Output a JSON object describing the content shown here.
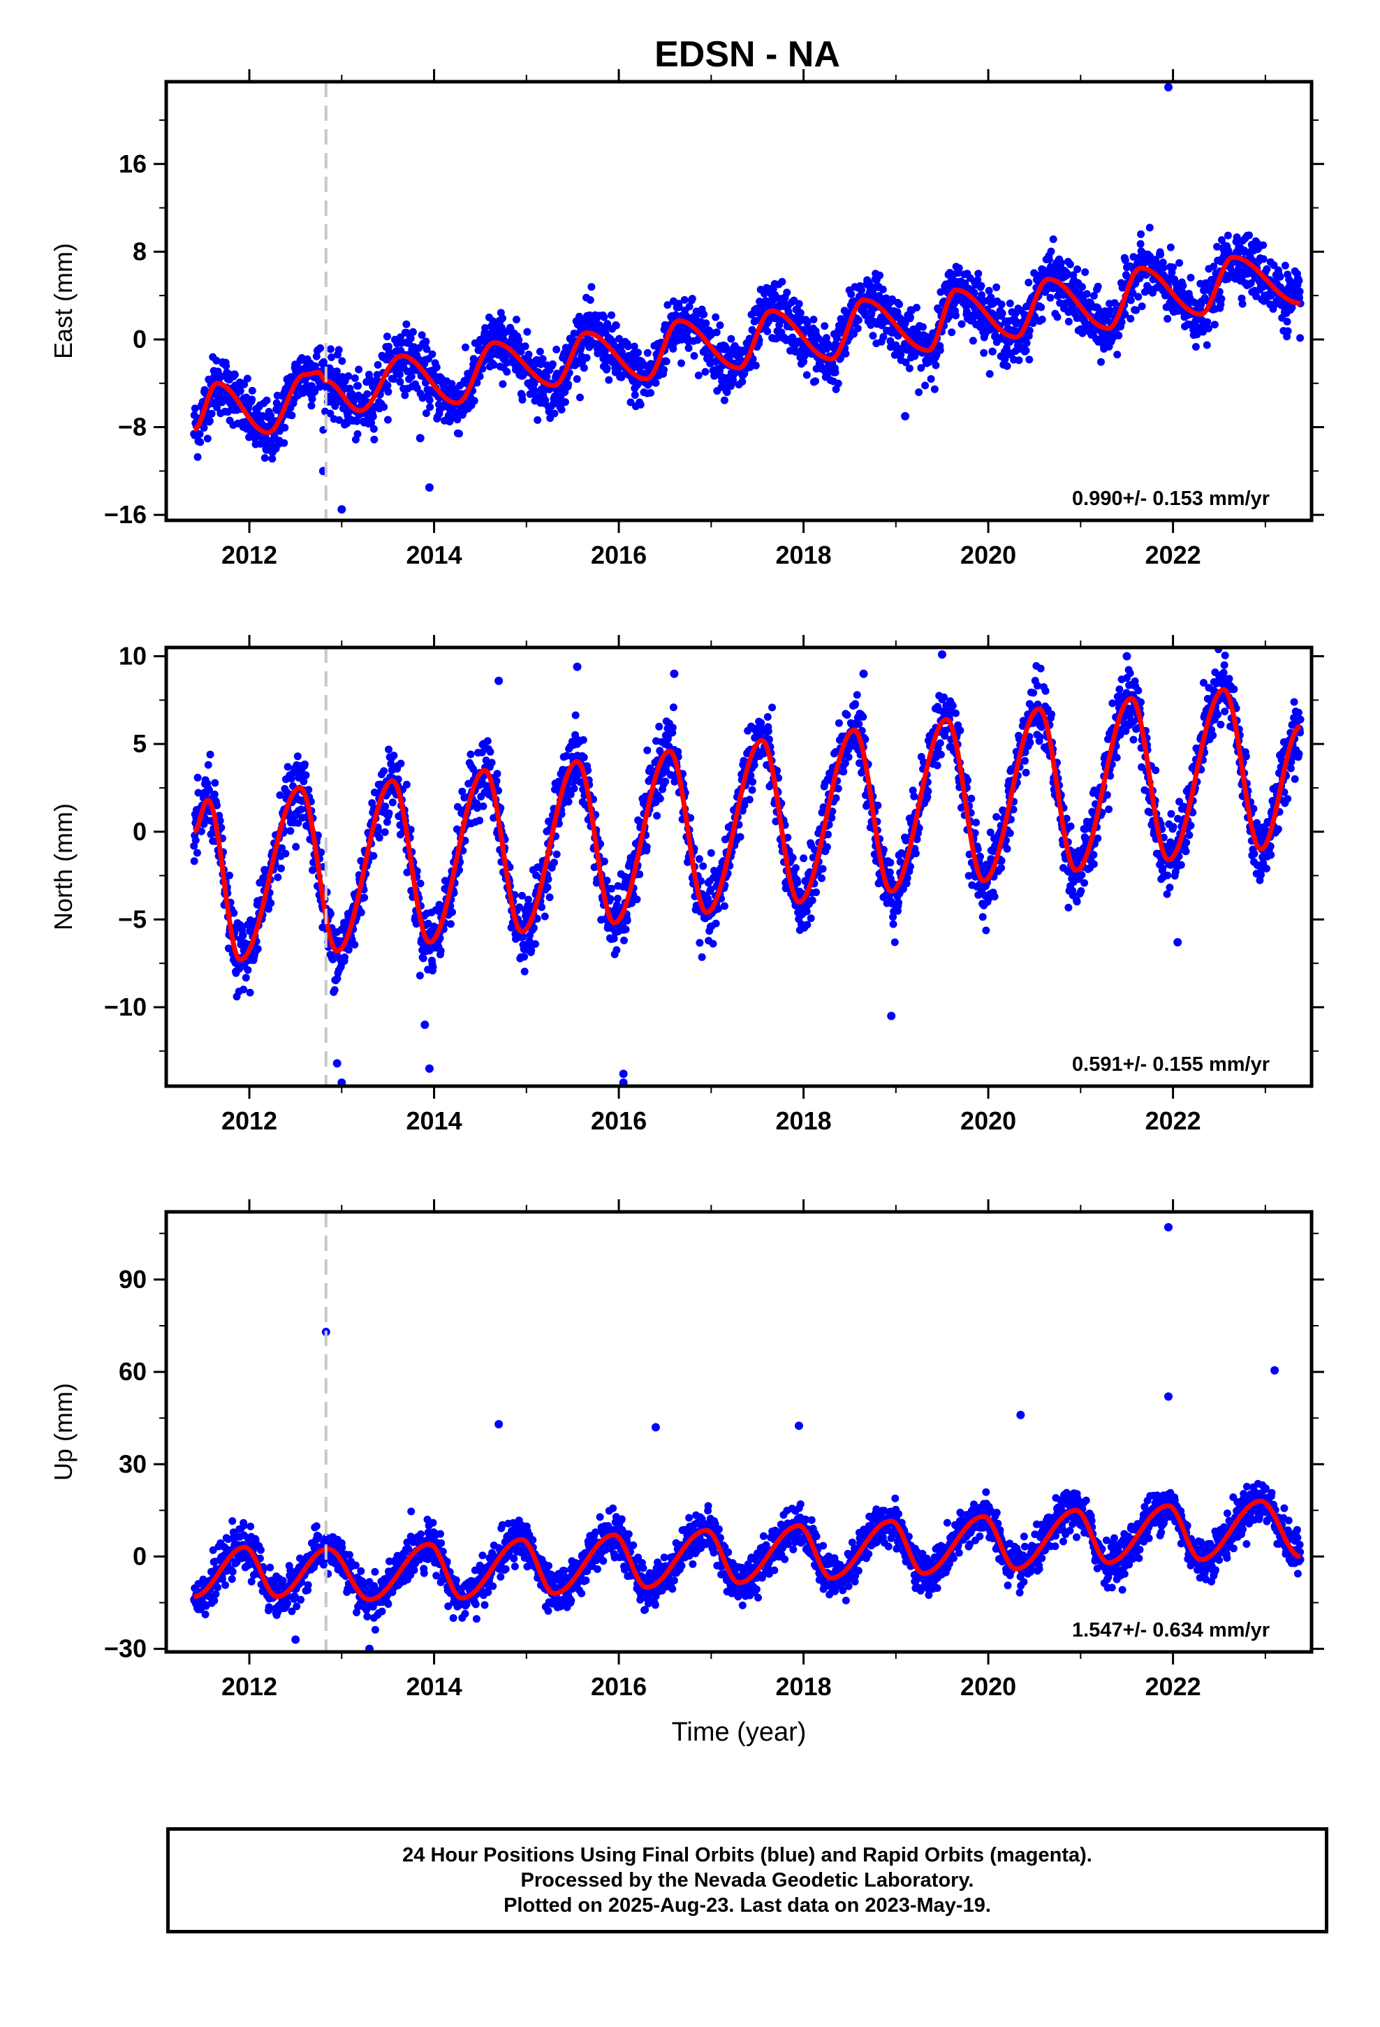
{
  "title": "EDSN - NA",
  "footer": {
    "line1": "24 Hour Positions Using Final Orbits (blue) and Rapid Orbits (magenta).",
    "line2": "Processed by the Nevada Geodetic Laboratory.",
    "line3": "Plotted on 2025-Aug-23. Last data on 2023-May-19."
  },
  "colors": {
    "points": "#0000ff",
    "model": "#ff0000",
    "event_line": "#c8c8c8",
    "frame": "#000000"
  },
  "chart_data": [
    {
      "type": "scatter",
      "name": "east",
      "ylabel": "East (mm)",
      "xlim": [
        2011.1,
        2023.5
      ],
      "ylim": [
        -16.5,
        23.5
      ],
      "yticks": [
        -16,
        -8,
        0,
        8,
        16
      ],
      "ytick_labels": [
        "−16",
        "−8",
        "0",
        "8",
        "16"
      ],
      "xticks": [
        2012,
        2014,
        2016,
        2018,
        2020,
        2022
      ],
      "xtick_labels": [
        "2012",
        "2014",
        "2016",
        "2018",
        "2020",
        "2022"
      ],
      "rate_label": "0.990+/- 0.153 mm/yr",
      "event_line_x": 2012.83,
      "model": {
        "start": 2011.4,
        "end": 2023.38,
        "knots_x": [
          2011.4,
          2011.65,
          2012.2,
          2012.6,
          2012.75,
          2012.83,
          2013.2,
          2013.65,
          2014.25,
          2014.65,
          2015.3,
          2015.65,
          2016.3,
          2016.65,
          2017.3,
          2017.65,
          2018.3,
          2018.65,
          2019.35,
          2019.65,
          2020.3,
          2020.65,
          2021.3,
          2021.65,
          2022.3,
          2022.65,
          2023.38
        ],
        "knots_y": [
          -8.2,
          -4.0,
          -8.5,
          -3.2,
          -3.0,
          -3.8,
          -6.5,
          -1.5,
          -5.8,
          -0.3,
          -4.2,
          0.6,
          -3.6,
          1.7,
          -2.6,
          2.6,
          -1.8,
          3.6,
          -1.0,
          4.5,
          0.2,
          5.5,
          1.0,
          6.5,
          2.3,
          7.5,
          3.3
        ]
      },
      "noise": 1.8,
      "outliers": [
        [
          2012.8,
          -12.0
        ],
        [
          2013.0,
          -15.5
        ],
        [
          2013.95,
          -13.5
        ],
        [
          2019.1,
          -7.0
        ],
        [
          2021.95,
          23.0
        ],
        [
          2013.85,
          -9.0
        ]
      ]
    },
    {
      "type": "scatter",
      "name": "north",
      "ylabel": "North (mm)",
      "xlim": [
        2011.1,
        2023.5
      ],
      "ylim": [
        -14.5,
        10.5
      ],
      "yticks": [
        -10,
        -5,
        0,
        5,
        10
      ],
      "ytick_labels": [
        "−10",
        "−5",
        "0",
        "5",
        "10"
      ],
      "xticks": [
        2012,
        2014,
        2016,
        2018,
        2020,
        2022
      ],
      "xtick_labels": [
        "2012",
        "2014",
        "2016",
        "2018",
        "2020",
        "2022"
      ],
      "rate_label": "0.591+/- 0.155 mm/yr",
      "event_line_x": 2012.83,
      "model": {
        "start": 2011.4,
        "end": 2023.38,
        "knots_x": [
          2011.4,
          2011.55,
          2011.9,
          2012.55,
          2012.95,
          2013.55,
          2013.95,
          2014.55,
          2014.95,
          2015.55,
          2015.95,
          2016.55,
          2016.95,
          2017.55,
          2017.95,
          2018.55,
          2018.95,
          2019.55,
          2019.95,
          2020.55,
          2020.95,
          2021.55,
          2021.95,
          2022.55,
          2022.95,
          2023.38
        ],
        "knots_y": [
          0.0,
          1.8,
          -7.3,
          2.5,
          -6.8,
          2.9,
          -6.3,
          3.5,
          -5.7,
          4.0,
          -5.2,
          4.6,
          -4.6,
          5.2,
          -4.0,
          5.8,
          -3.4,
          6.4,
          -2.8,
          7.0,
          -2.2,
          7.6,
          -1.6,
          8.1,
          -1.0,
          6.0
        ]
      },
      "noise": 1.3,
      "outliers": [
        [
          2012.95,
          -13.2
        ],
        [
          2013.0,
          -14.3
        ],
        [
          2013.95,
          -13.5
        ],
        [
          2013.9,
          -11.0
        ],
        [
          2014.7,
          8.6
        ],
        [
          2015.55,
          9.4
        ],
        [
          2016.05,
          -13.8
        ],
        [
          2016.05,
          -14.3
        ],
        [
          2016.6,
          9.0
        ],
        [
          2018.65,
          9.0
        ],
        [
          2019.5,
          10.1
        ],
        [
          2021.5,
          10.0
        ],
        [
          2018.95,
          -10.5
        ],
        [
          2022.05,
          -6.3
        ]
      ]
    },
    {
      "type": "scatter",
      "name": "up",
      "ylabel": "Up (mm)",
      "xlabel": "Time (year)",
      "xlim": [
        2011.1,
        2023.5
      ],
      "ylim": [
        -31,
        112
      ],
      "yticks": [
        -30,
        0,
        30,
        60,
        90
      ],
      "ytick_labels": [
        "−30",
        "0",
        "30",
        "60",
        "90"
      ],
      "xticks": [
        2012,
        2014,
        2016,
        2018,
        2020,
        2022
      ],
      "xtick_labels": [
        "2012",
        "2014",
        "2016",
        "2018",
        "2020",
        "2022"
      ],
      "rate_label": "1.547+/- 0.634 mm/yr",
      "event_line_x": 2012.83,
      "model": {
        "start": 2011.4,
        "end": 2023.38,
        "knots_x": [
          2011.4,
          2011.95,
          2012.3,
          2012.85,
          2013.3,
          2013.95,
          2014.3,
          2014.95,
          2015.3,
          2015.95,
          2016.3,
          2016.95,
          2017.3,
          2017.95,
          2018.3,
          2018.95,
          2019.3,
          2019.95,
          2020.3,
          2020.95,
          2021.3,
          2021.95,
          2022.3,
          2022.95,
          2023.38
        ],
        "knots_y": [
          -13.0,
          3.0,
          -13.0,
          2.5,
          -14.0,
          4.0,
          -13.5,
          5.5,
          -12.0,
          7.0,
          -10.0,
          8.5,
          -8.5,
          10.0,
          -7.0,
          11.5,
          -5.5,
          13.0,
          -4.0,
          15.0,
          -2.0,
          16.5,
          -1.0,
          18.0,
          0.0
        ]
      },
      "noise": 4.5,
      "outliers": [
        [
          2012.83,
          73.0
        ],
        [
          2014.7,
          43.0
        ],
        [
          2016.4,
          42.0
        ],
        [
          2017.95,
          42.5
        ],
        [
          2020.35,
          46.0
        ],
        [
          2021.95,
          52.0
        ],
        [
          2021.95,
          107.0
        ],
        [
          2023.1,
          60.5
        ],
        [
          2012.5,
          -27.0
        ],
        [
          2013.3,
          -30.0
        ]
      ]
    }
  ]
}
